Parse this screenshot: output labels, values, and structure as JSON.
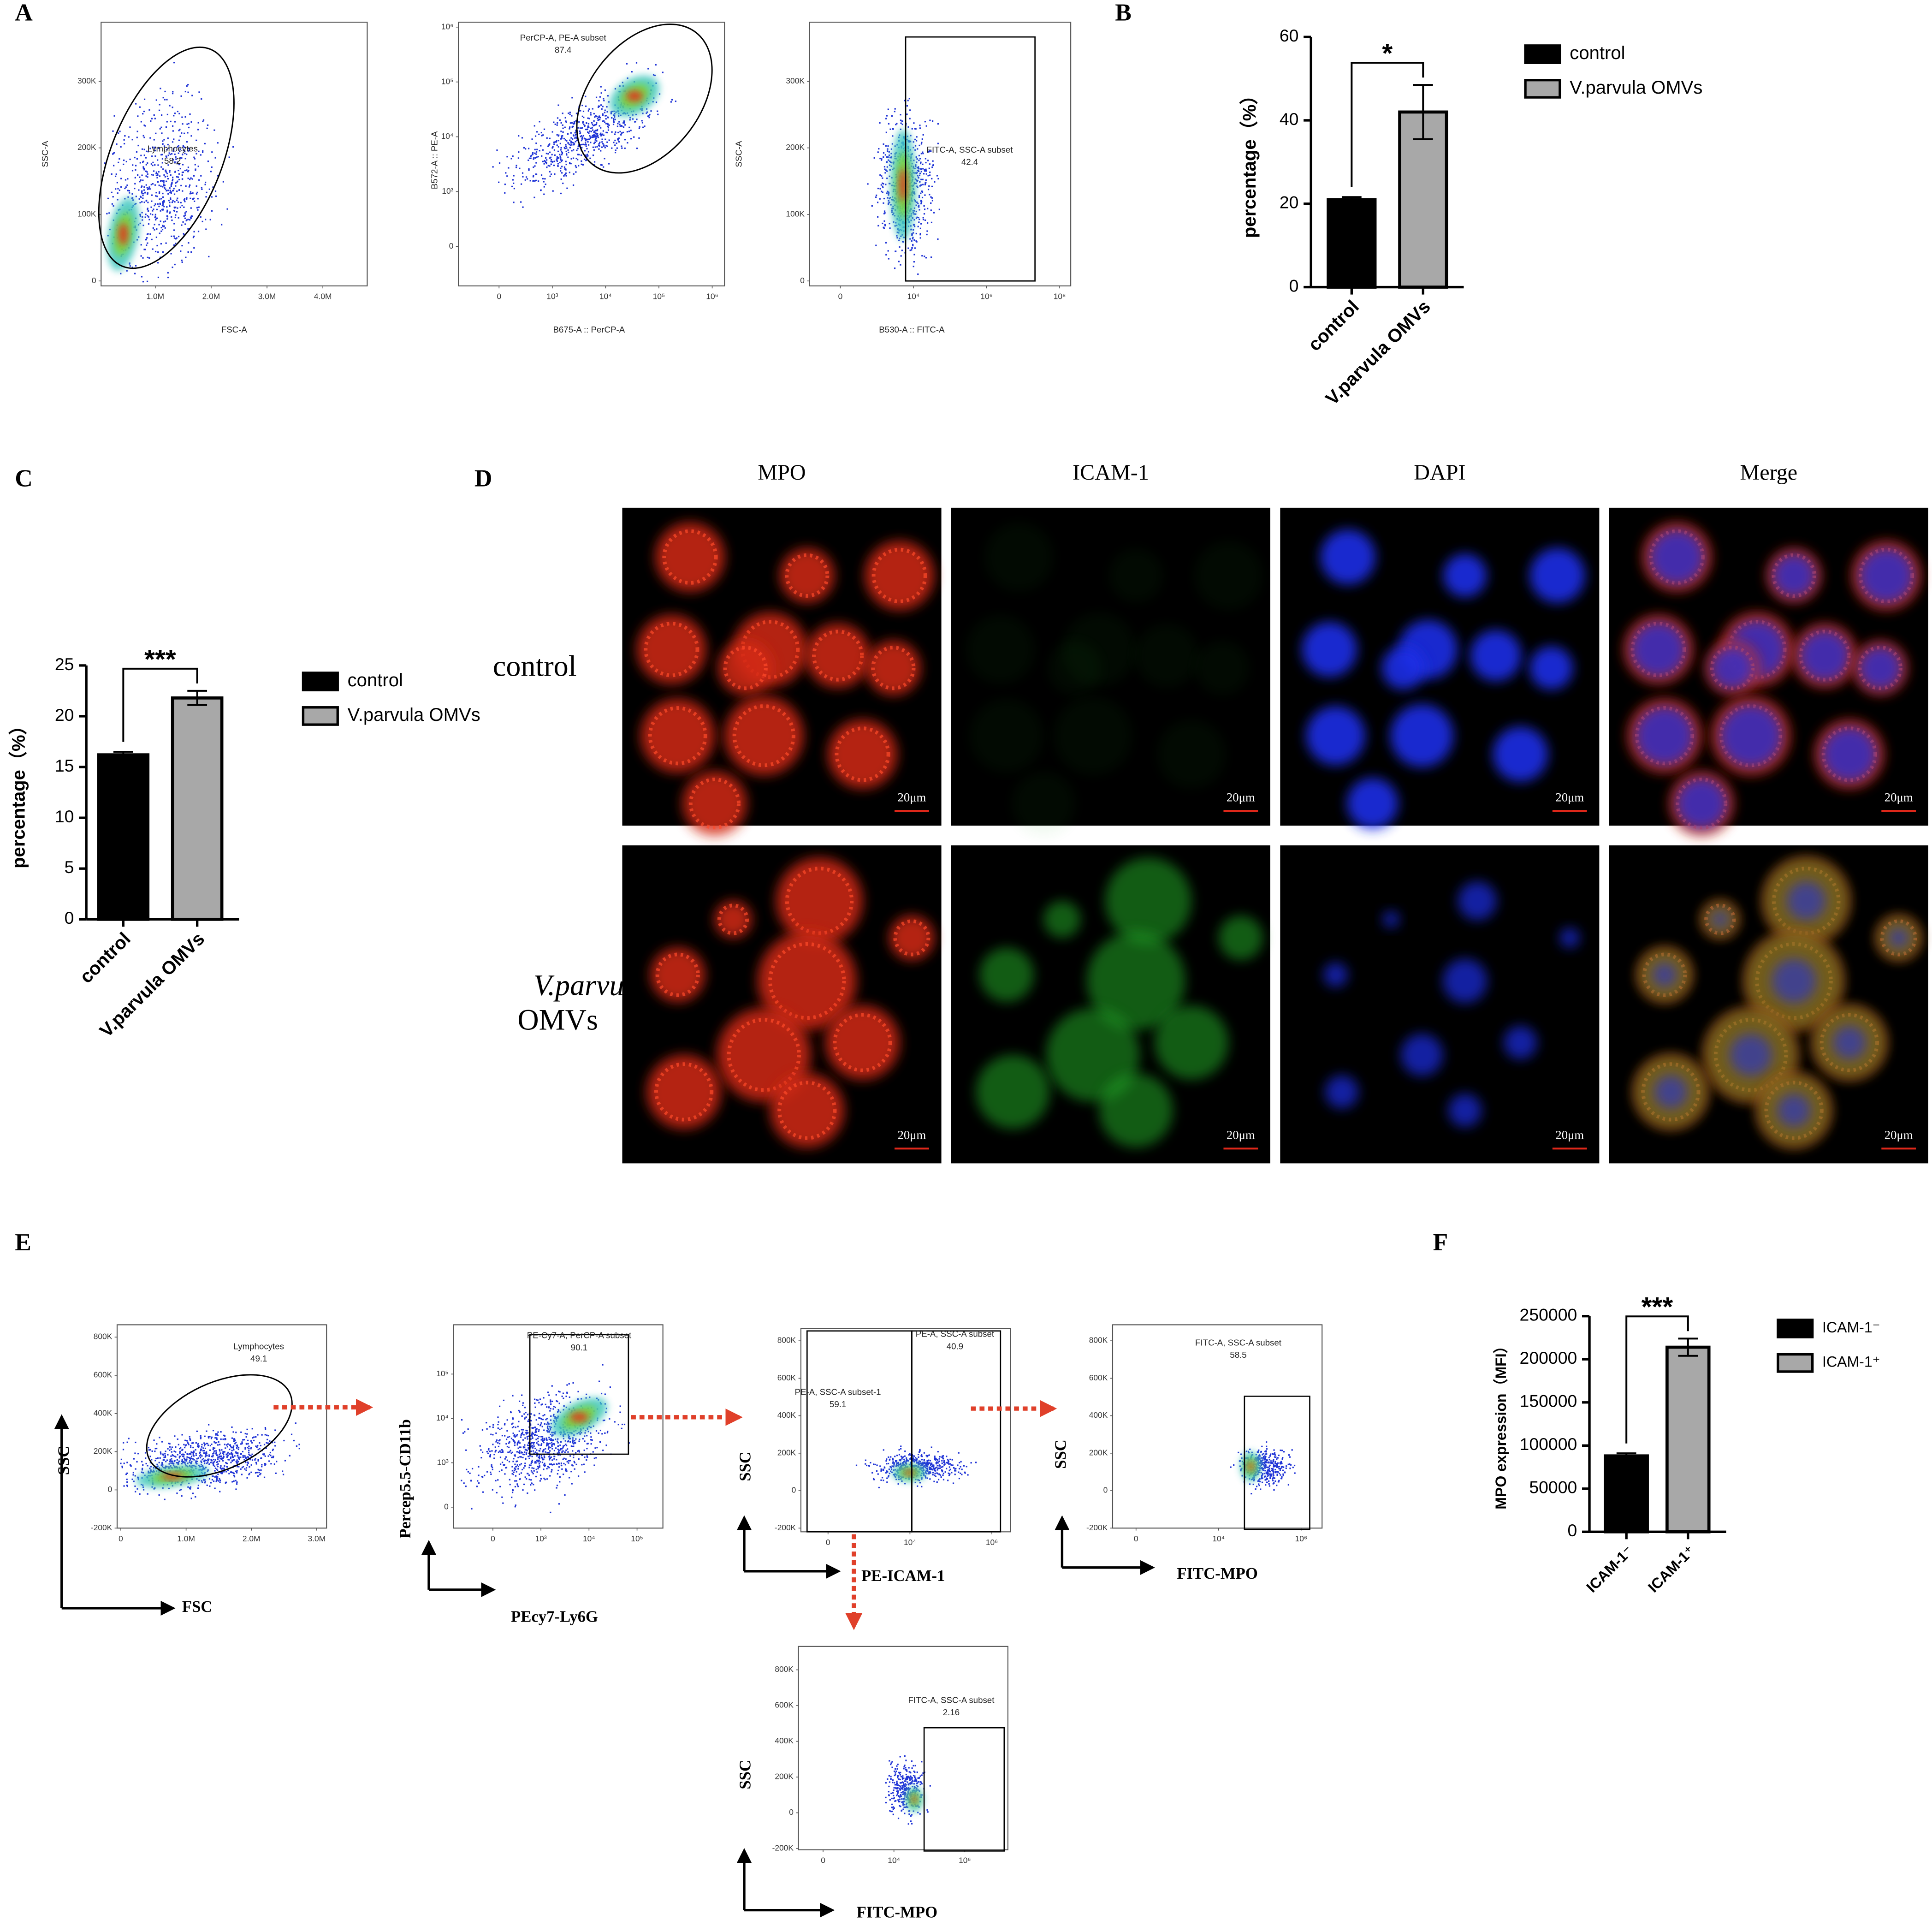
{
  "panel_labels": [
    "A",
    "B",
    "C",
    "D",
    "E",
    "F"
  ],
  "chart_data": [
    {
      "type": "bar",
      "categories": [
        "control",
        "V.parvula OMVs"
      ],
      "values": [
        21,
        42
      ],
      "errors": [
        0.6,
        6.5
      ],
      "colors": [
        "#000000",
        "#a8a8a8"
      ],
      "y_label": "percentage（%）",
      "ylim": [
        0,
        60
      ],
      "yticks": [
        0,
        20,
        40,
        60
      ],
      "annotation": "*"
    },
    {
      "type": "bar",
      "categories": [
        "control",
        "V.parvula OMVs"
      ],
      "values": [
        16.2,
        21.8
      ],
      "errors": [
        0.3,
        0.7
      ],
      "colors": [
        "#000000",
        "#a8a8a8"
      ],
      "y_label": "percentage（%）",
      "ylim": [
        0,
        25
      ],
      "yticks": [
        0,
        5,
        10,
        15,
        20,
        25
      ],
      "annotation": "***"
    },
    {
      "type": "bar",
      "categories": [
        "ICAM-1⁻",
        "ICAM-1⁺"
      ],
      "values": [
        88000,
        214000
      ],
      "errors": [
        3000,
        10000
      ],
      "colors": [
        "#000000",
        "#a8a8a8"
      ],
      "y_label": "MPO expression（MFI）",
      "ylim": [
        0,
        250000
      ],
      "yticks": [
        0,
        50000,
        100000,
        150000,
        200000,
        250000
      ],
      "annotation": "***"
    }
  ],
  "flow_a": [
    {
      "y_label": "SSC-A",
      "x_label": "FSC-A",
      "yticks": [
        "300K",
        "200K",
        "100K",
        "0"
      ],
      "xticks": [
        "1.0M",
        "2.0M",
        "3.0M",
        "4.0M"
      ],
      "gates": [
        {
          "name": "Lymphocytes",
          "value": 58.2
        }
      ]
    },
    {
      "y_label": "B572-A :: PE-A",
      "x_label": "B675-A :: PerCP-A",
      "yticks": [
        "10⁶",
        "10⁵",
        "10⁴",
        "10³",
        "0"
      ],
      "xticks": [
        "0",
        "10³",
        "10⁴",
        "10⁵",
        "10⁶"
      ],
      "gates": [
        {
          "name": "PerCP-A, PE-A subset",
          "value": 87.4
        }
      ]
    },
    {
      "y_label": "SSC-A",
      "x_label": "B530-A :: FITC-A",
      "yticks": [
        "300K",
        "200K",
        "100K",
        "0"
      ],
      "xticks": [
        "0",
        "10⁴",
        "10⁶",
        "10⁸"
      ],
      "gates": [
        {
          "name": "FITC-A, SSC-A subset",
          "value": 42.4
        }
      ]
    }
  ],
  "microscopy": {
    "columns": [
      "MPO",
      "ICAM-1",
      "DAPI",
      "Merge"
    ],
    "rows": [
      [
        "control"
      ],
      [
        "V.parvula",
        "OMVs"
      ]
    ],
    "scale_bar": "20μm"
  },
  "flow_e": [
    {
      "y_label": "SSC",
      "x_label": "FSC",
      "yticks": [
        "800K",
        "600K",
        "400K",
        "200K",
        "0",
        "-200K"
      ],
      "xticks": [
        "0",
        "1.0M",
        "2.0M",
        "3.0M"
      ],
      "gates": [
        {
          "name": "Lymphocytes",
          "value": 49.1
        }
      ]
    },
    {
      "y_label": "Percep5.5-CD11b",
      "x_label": "PEcy7-Ly6G",
      "yticks": [
        "10⁵",
        "10⁴",
        "10³",
        "0"
      ],
      "xticks": [
        "0",
        "10³",
        "10⁴",
        "10⁵"
      ],
      "gates": [
        {
          "name": "PE-Cy7-A, PerCP-A subset",
          "value": 90.1
        }
      ]
    },
    {
      "y_label": "SSC",
      "x_label": "PE-ICAM-1",
      "yticks": [
        "800K",
        "600K",
        "400K",
        "200K",
        "0",
        "-200K"
      ],
      "xticks": [
        "0",
        "10⁴",
        "10⁶"
      ],
      "gates": [
        {
          "name": "PE-A, SSC-A subset-1",
          "value": 59.1
        },
        {
          "name": "PE-A, SSC-A subset",
          "value": 40.9
        }
      ]
    },
    {
      "y_label": "SSC",
      "x_label": "FITC-MPO",
      "yticks": [
        "800K",
        "600K",
        "400K",
        "200K",
        "0",
        "-200K"
      ],
      "xticks": [
        "0",
        "10⁴",
        "10⁶"
      ],
      "gates": [
        {
          "name": "FITC-A, SSC-A subset",
          "value": 58.5
        }
      ]
    },
    {
      "y_label": "SSC",
      "x_label": "FITC-MPO",
      "yticks": [
        "800K",
        "600K",
        "400K",
        "200K",
        "0",
        "-200K"
      ],
      "xticks": [
        "0",
        "10⁴",
        "10⁶"
      ],
      "gates": [
        {
          "name": "FITC-A, SSC-A subset",
          "value": 2.16
        }
      ]
    }
  ]
}
